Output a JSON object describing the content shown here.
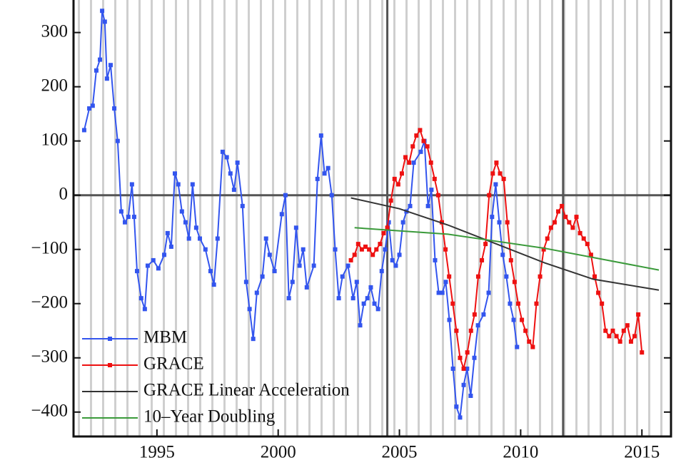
{
  "chart_data": {
    "type": "line",
    "xlim": [
      1991.56,
      2016.2
    ],
    "ylim": [
      -445,
      360
    ],
    "xticks": [
      1995,
      2000,
      2005,
      2010,
      2015
    ],
    "yticks": [
      {
        "value": -400,
        "label": "−400"
      },
      {
        "value": -300,
        "label": "−300"
      },
      {
        "value": -200,
        "label": "−200"
      },
      {
        "value": -100,
        "label": "−100"
      },
      0,
      100,
      200,
      300
    ],
    "vlines": [
      2004.5,
      2011.75
    ],
    "legend": "lower-left",
    "series": [
      {
        "name": "MBM",
        "color": "#3355ee",
        "marker": "square",
        "x": [
          1992.0,
          1992.21,
          1992.35,
          1992.5,
          1992.65,
          1992.74,
          1992.85,
          1992.94,
          1993.09,
          1993.24,
          1993.38,
          1993.53,
          1993.68,
          1993.82,
          1993.97,
          1994.06,
          1994.18,
          1994.35,
          1994.5,
          1994.62,
          1994.85,
          1995.06,
          1995.3,
          1995.44,
          1995.59,
          1995.74,
          1995.88,
          1996.03,
          1996.18,
          1996.32,
          1996.47,
          1996.62,
          1996.77,
          1997.0,
          1997.21,
          1997.35,
          1997.5,
          1997.71,
          1997.88,
          1998.03,
          1998.18,
          1998.32,
          1998.53,
          1998.68,
          1998.82,
          1998.97,
          1999.12,
          1999.35,
          1999.5,
          1999.65,
          1999.85,
          2000.15,
          2000.3,
          2000.44,
          2000.59,
          2000.74,
          2000.88,
          2001.03,
          2001.18,
          2001.47,
          2001.62,
          2001.77,
          2001.91,
          2002.06,
          2002.21,
          2002.35,
          2002.5,
          2002.65,
          2002.88,
          2003.09,
          2003.24,
          2003.38,
          2003.53,
          2003.68,
          2003.82,
          2003.97,
          2004.12,
          2004.27,
          2004.41,
          2004.56,
          2004.71,
          2004.85,
          2005.0,
          2005.15,
          2005.29,
          2005.44,
          2005.59,
          2005.88,
          2006.03,
          2006.18,
          2006.32,
          2006.47,
          2006.62,
          2006.77,
          2006.91,
          2007.06,
          2007.21,
          2007.35,
          2007.5,
          2007.65,
          2007.79,
          2007.94,
          2008.09,
          2008.24,
          2008.47,
          2008.68,
          2008.82,
          2008.97,
          2009.12,
          2009.26,
          2009.41,
          2009.56,
          2009.71,
          2009.85
        ],
        "values": [
          120,
          160,
          165,
          230,
          250,
          340,
          320,
          215,
          240,
          160,
          100,
          -30,
          -50,
          -40,
          20,
          -40,
          -140,
          -190,
          -210,
          -130,
          -120,
          -135,
          -110,
          -70,
          -95,
          40,
          20,
          -30,
          -50,
          -80,
          20,
          -60,
          -80,
          -100,
          -140,
          -165,
          -80,
          80,
          70,
          40,
          10,
          60,
          -20,
          -160,
          -210,
          -265,
          -180,
          -150,
          -80,
          -110,
          -140,
          -35,
          0,
          -190,
          -160,
          -60,
          -130,
          -100,
          -170,
          -130,
          30,
          110,
          40,
          50,
          0,
          -100,
          -190,
          -150,
          -130,
          -190,
          -160,
          -240,
          -200,
          -190,
          -170,
          -200,
          -210,
          -140,
          -100,
          -50,
          -120,
          -130,
          -110,
          -50,
          -30,
          -20,
          60,
          80,
          100,
          -20,
          10,
          -120,
          -180,
          -180,
          -160,
          -230,
          -320,
          -390,
          -410,
          -350,
          -320,
          -370,
          -300,
          -240,
          -220,
          -180,
          -40,
          20,
          -50,
          -110,
          -150,
          -200,
          -230,
          -280
        ]
      },
      {
        "name": "GRACE",
        "color": "#ee1111",
        "marker": "square",
        "x": [
          2003,
          2003.15,
          2003.3,
          2003.45,
          2003.6,
          2003.75,
          2003.9,
          2004.05,
          2004.2,
          2004.35,
          2004.5,
          2004.65,
          2004.8,
          2004.95,
          2005.1,
          2005.25,
          2005.4,
          2005.55,
          2005.7,
          2005.85,
          2006,
          2006.15,
          2006.3,
          2006.45,
          2006.6,
          2006.75,
          2006.9,
          2007.05,
          2007.2,
          2007.35,
          2007.5,
          2007.65,
          2007.8,
          2007.95,
          2008.1,
          2008.25,
          2008.4,
          2008.55,
          2008.7,
          2008.85,
          2009,
          2009.15,
          2009.3,
          2009.45,
          2009.6,
          2009.75,
          2009.9,
          2010.05,
          2010.2,
          2010.35,
          2010.5,
          2010.65,
          2010.8,
          2010.95,
          2011.1,
          2011.25,
          2011.4,
          2011.55,
          2011.7,
          2011.85,
          2012,
          2012.15,
          2012.3,
          2012.45,
          2012.6,
          2012.75,
          2012.9,
          2013.05,
          2013.2,
          2013.35,
          2013.5,
          2013.65,
          2013.8,
          2013.95,
          2014.1,
          2014.25,
          2014.4,
          2014.55,
          2014.7,
          2014.85,
          2015
        ],
        "values": [
          -120,
          -110,
          -90,
          -100,
          -95,
          -100,
          -110,
          -100,
          -90,
          -70,
          -60,
          -10,
          30,
          20,
          40,
          70,
          60,
          90,
          110,
          120,
          100,
          90,
          60,
          30,
          0,
          -50,
          -100,
          -150,
          -200,
          -250,
          -300,
          -320,
          -290,
          -250,
          -220,
          -150,
          -120,
          -90,
          0,
          40,
          60,
          40,
          30,
          -50,
          -120,
          -160,
          -200,
          -230,
          -250,
          -270,
          -280,
          -200,
          -150,
          -100,
          -80,
          -60,
          -50,
          -30,
          -20,
          -40,
          -50,
          -60,
          -40,
          -70,
          -80,
          -90,
          -110,
          -150,
          -180,
          -200,
          -250,
          -260,
          -250,
          -260,
          -270,
          -250,
          -240,
          -270,
          -260,
          -220,
          -290
        ]
      },
      {
        "name": "GRACE Linear Acceleration",
        "color": "#333333",
        "x": [
          2003,
          2005,
          2007,
          2009,
          2011,
          2013,
          2015.7
        ],
        "values": [
          -5,
          -25,
          -55,
          -90,
          -125,
          -155,
          -175
        ]
      },
      {
        "name": "10–Year Doubling",
        "color": "#3a9a3a",
        "x": [
          2003.15,
          2007,
          2011,
          2015.7
        ],
        "values": [
          -60,
          -72,
          -98,
          -138
        ]
      }
    ]
  }
}
